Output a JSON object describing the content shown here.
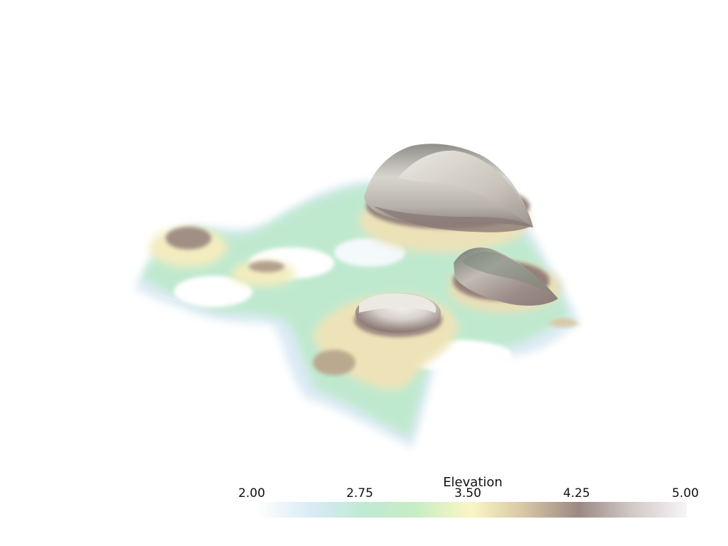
{
  "scalar_bar": {
    "title": "Elevation",
    "ticks": [
      "2.00",
      "2.75",
      "3.50",
      "4.25",
      "5.00"
    ],
    "range": [
      2.0,
      5.0
    ],
    "colormap_stops": [
      {
        "value": 2.0,
        "color": "#ffffff"
      },
      {
        "value": 2.4,
        "color": "#d8eaf5"
      },
      {
        "value": 2.75,
        "color": "#bfead3"
      },
      {
        "value": 3.1,
        "color": "#c6edc4"
      },
      {
        "value": 3.5,
        "color": "#fbf6c4"
      },
      {
        "value": 3.85,
        "color": "#d9c9a6"
      },
      {
        "value": 4.25,
        "color": "#9c8883"
      },
      {
        "value": 4.6,
        "color": "#cfc7c5"
      },
      {
        "value": 5.0,
        "color": "#f7f5f5"
      }
    ]
  },
  "scene": {
    "background": "#ffffff",
    "surface_type": "3d-elevation-surface"
  }
}
